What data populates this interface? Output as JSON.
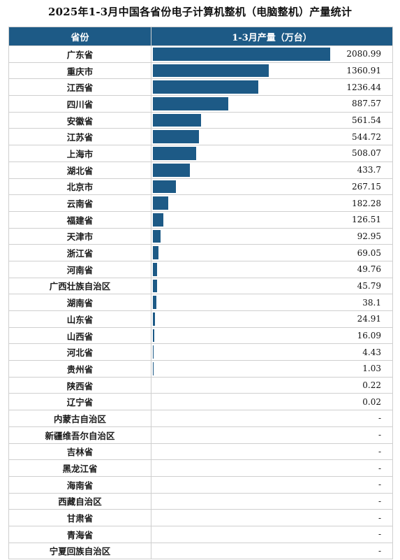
{
  "title": "2025年1-3月中国各省份电子计算机整机（电脑整机）产量统计",
  "header": {
    "province": "省份",
    "value": "1-3月产量（万台）"
  },
  "bar_color": "#1d5a86",
  "chart_data": {
    "type": "bar",
    "categories": [
      "广东省",
      "重庆市",
      "江西省",
      "四川省",
      "安徽省",
      "江苏省",
      "上海市",
      "湖北省",
      "北京市",
      "云南省",
      "福建省",
      "天津市",
      "浙江省",
      "河南省",
      "广西壮族自治区",
      "湖南省",
      "山东省",
      "山西省",
      "河北省",
      "贵州省",
      "陕西省",
      "辽宁省",
      "内蒙古自治区",
      "新疆维吾尔自治区",
      "吉林省",
      "黑龙江省",
      "海南省",
      "西藏自治区",
      "甘肃省",
      "青海省",
      "宁夏回族自治区"
    ],
    "values": [
      2080.99,
      1360.91,
      1236.44,
      887.57,
      561.54,
      544.72,
      508.07,
      433.7,
      267.15,
      182.28,
      126.51,
      92.95,
      69.05,
      49.76,
      45.79,
      38.1,
      24.91,
      16.09,
      4.43,
      1.03,
      0.22,
      0.02,
      null,
      null,
      null,
      null,
      null,
      null,
      null,
      null,
      null
    ],
    "labels": [
      "2080.99",
      "1360.91",
      "1236.44",
      "887.57",
      "561.54",
      "544.72",
      "508.07",
      "433.7",
      "267.15",
      "182.28",
      "126.51",
      "92.95",
      "69.05",
      "49.76",
      "45.79",
      "38.1",
      "24.91",
      "16.09",
      "4.43",
      "1.03",
      "0.22",
      "0.02",
      "-",
      "-",
      "-",
      "-",
      "-",
      "-",
      "-",
      "-",
      "-"
    ],
    "title": "2025年1-3月中国各省份电子计算机整机（电脑整机）产量统计",
    "ylabel": "1-3月产量（万台）"
  }
}
